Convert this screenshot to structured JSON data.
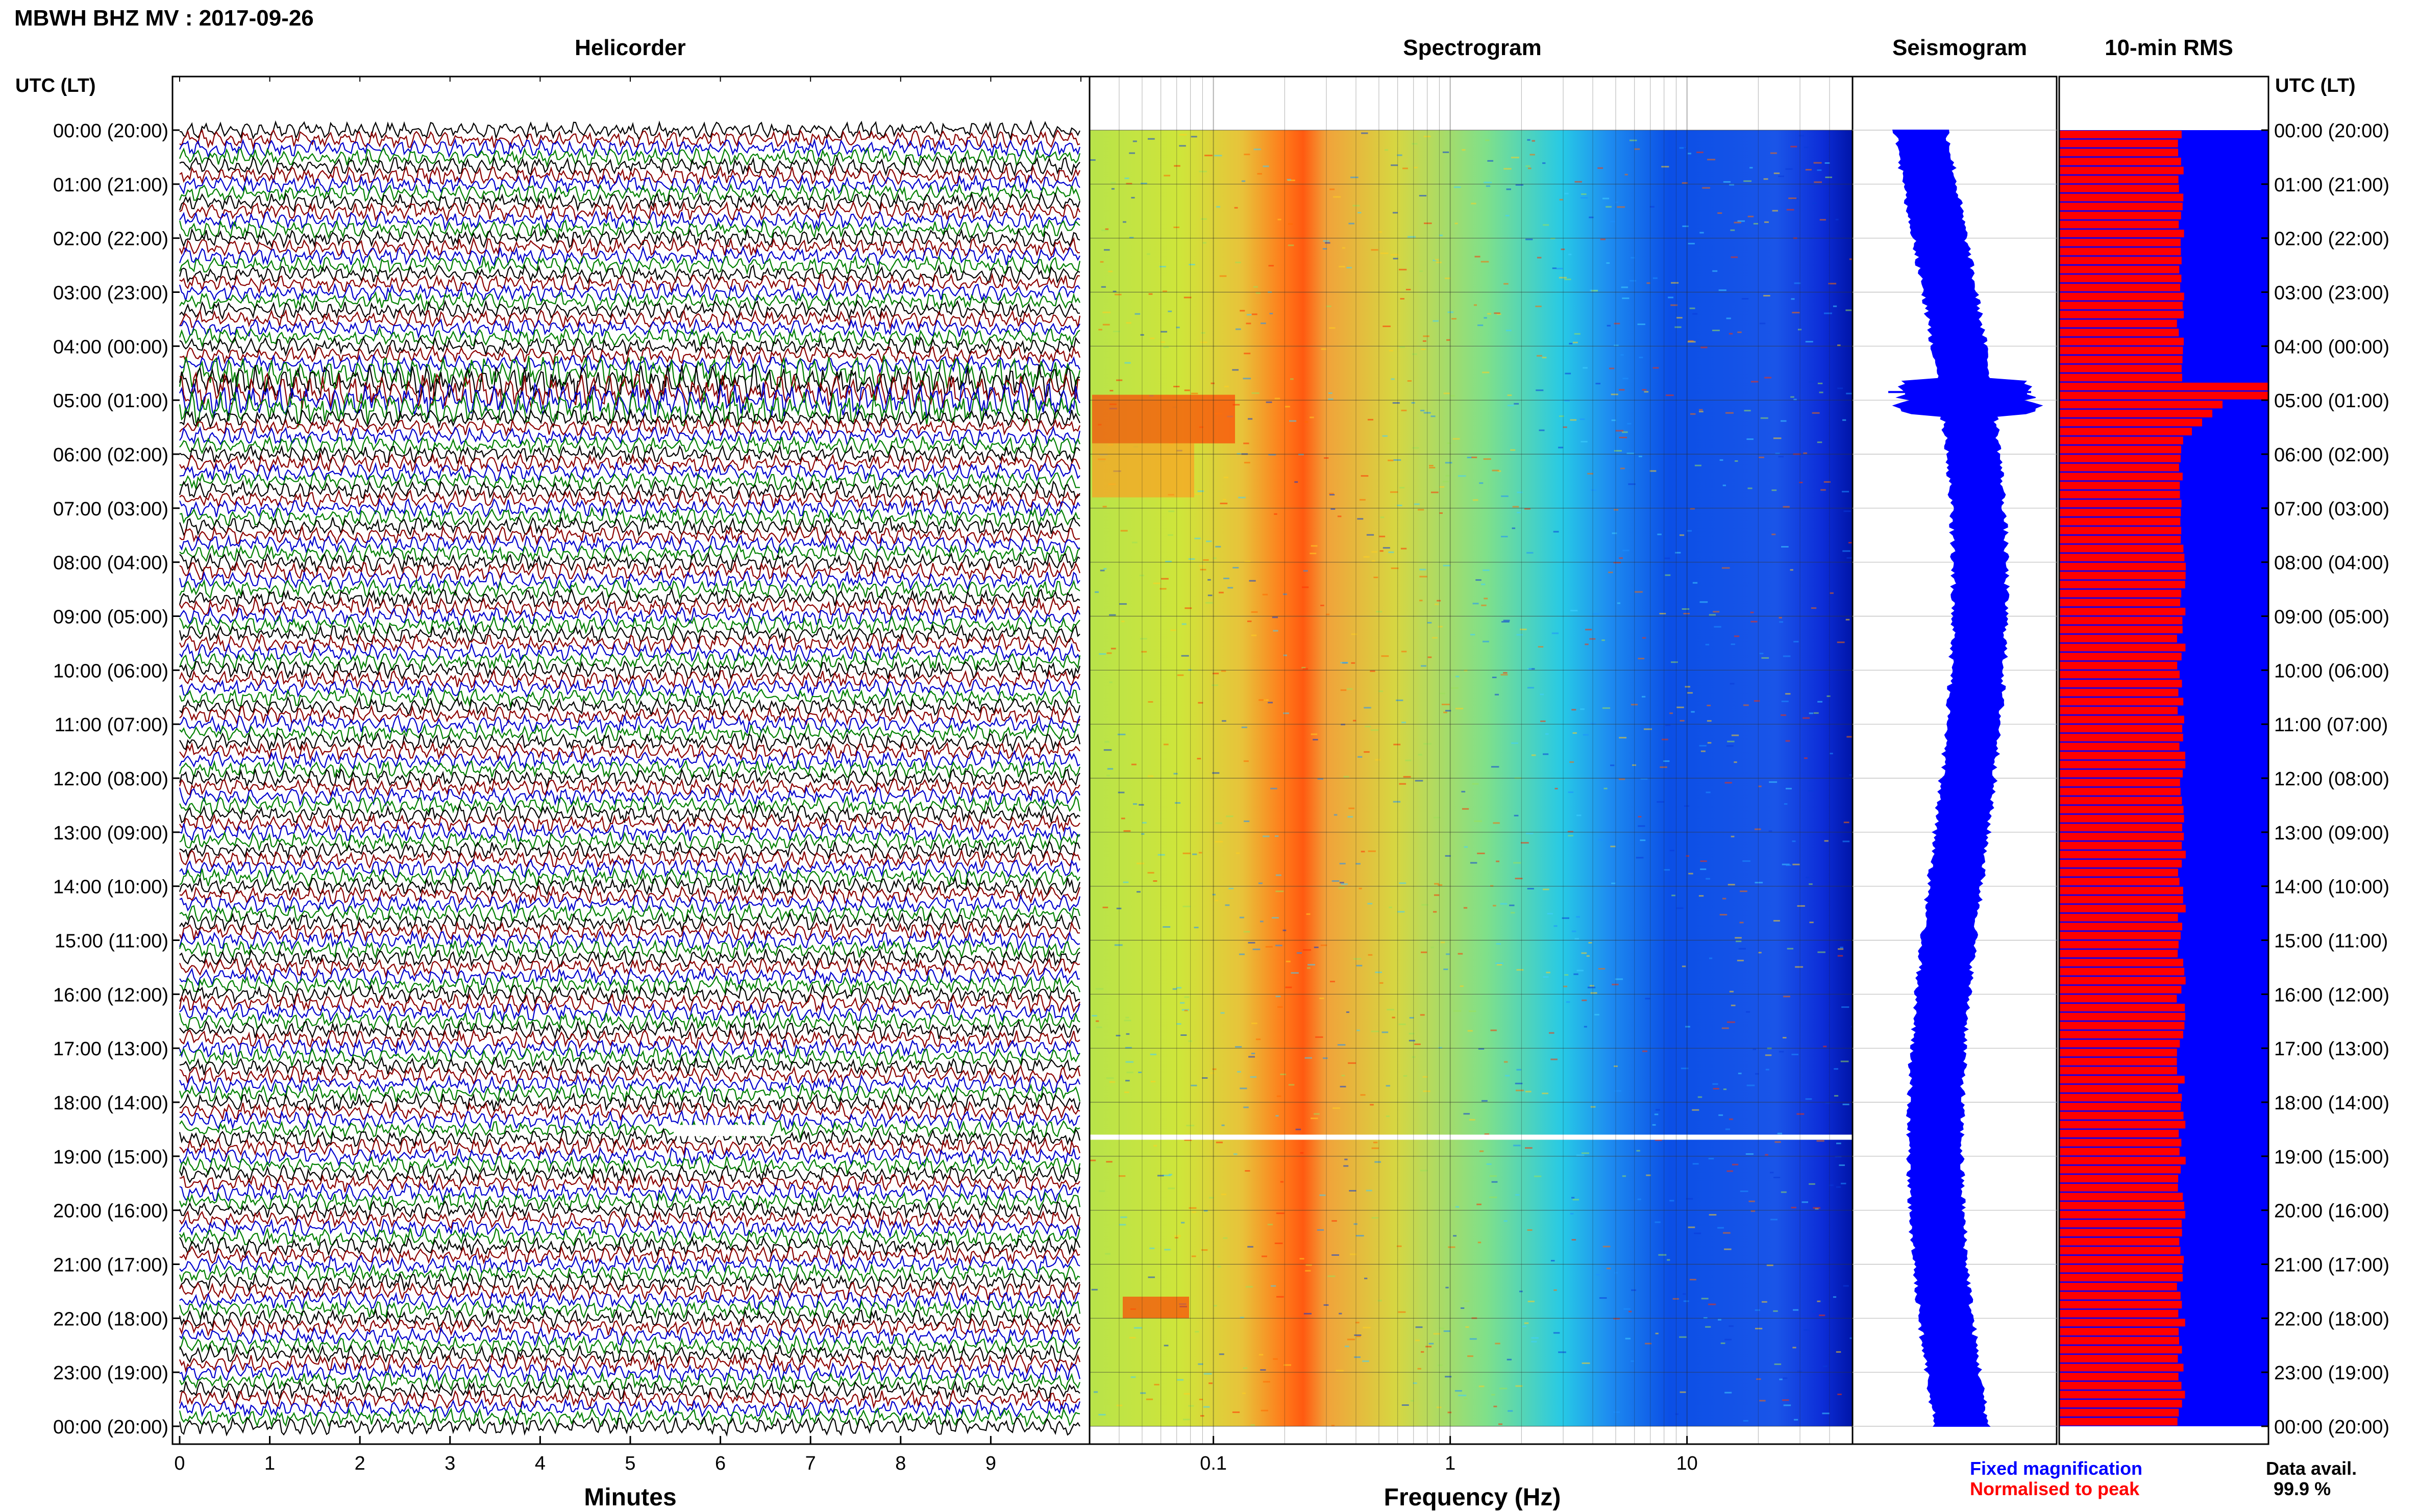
{
  "title": "MBWH BHZ MV : 2017-09-26",
  "panels": {
    "helicorder": "Helicorder",
    "spectrogram": "Spectrogram",
    "seismogram": "Seismogram",
    "rms": "10-min RMS"
  },
  "axis_labels": {
    "left_header": "UTC (LT)",
    "right_header": "UTC (LT)",
    "helicorder_x": "Minutes",
    "spectrogram_x": "Frequency (Hz)"
  },
  "time_ticks": [
    "00:00 (20:00)",
    "01:00 (21:00)",
    "02:00 (22:00)",
    "03:00 (23:00)",
    "04:00 (00:00)",
    "05:00 (01:00)",
    "06:00 (02:00)",
    "07:00 (03:00)",
    "08:00 (04:00)",
    "09:00 (05:00)",
    "10:00 (06:00)",
    "11:00 (07:00)",
    "12:00 (08:00)",
    "13:00 (09:00)",
    "14:00 (10:00)",
    "15:00 (11:00)",
    "16:00 (12:00)",
    "17:00 (13:00)",
    "18:00 (14:00)",
    "19:00 (15:00)",
    "20:00 (16:00)",
    "21:00 (17:00)",
    "22:00 (18:00)",
    "23:00 (19:00)",
    "00:00 (20:00)"
  ],
  "minute_ticks": [
    "0",
    "1",
    "2",
    "3",
    "4",
    "5",
    "6",
    "7",
    "8",
    "9"
  ],
  "frequency_ticks": [
    "0.1",
    "1",
    "10"
  ],
  "legend": {
    "fixed": "Fixed magnification",
    "normalised": "Normalised to peak",
    "avail_label": "Data avail.",
    "avail_value": "99.9 %"
  },
  "colors": {
    "trace_cycle": [
      "#000000",
      "#8b0000",
      "#0000cd",
      "#008000"
    ],
    "seismogram": "#0000ff",
    "rms_normalised": "#ff0000",
    "rms_fixed": "#0000ff",
    "legend_fixed": "#0000ff",
    "legend_normalised": "#ff0000"
  },
  "chart_data": [
    {
      "type": "line",
      "title": "Helicorder",
      "xlabel": "Minutes",
      "x_range_minutes": [
        0,
        10
      ],
      "traces_per_hour": 6,
      "hours": 24,
      "notes_events": [
        {
          "utc": "04:30",
          "description": "elevated amplitude"
        },
        {
          "utc": "05:00",
          "description": "elevated amplitude"
        },
        {
          "utc": "18:30",
          "description": "data gap"
        }
      ]
    },
    {
      "type": "heatmap",
      "title": "Spectrogram",
      "xlabel": "Frequency (Hz)",
      "x_scale": "log",
      "x_range_hz": [
        0.03,
        50
      ],
      "dominant_band_hz": [
        0.18,
        0.25
      ],
      "gap_utc": "18:40"
    },
    {
      "type": "line",
      "title": "Seismogram",
      "note": "long-period envelope, spike near 05:00 UTC"
    },
    {
      "type": "bar",
      "title": "10-min RMS",
      "series": [
        {
          "name": "Fixed magnification",
          "color": "#0000ff"
        },
        {
          "name": "Normalised to peak",
          "color": "#ff0000"
        }
      ],
      "peak_utc": "05:00"
    }
  ]
}
